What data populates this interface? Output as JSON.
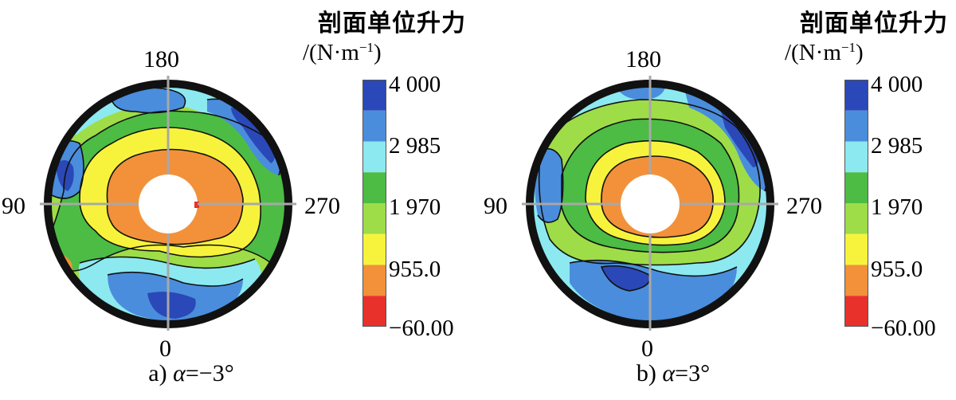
{
  "figures": [
    {
      "id": "a",
      "caption_prefix": "a)",
      "caption_alpha": "α",
      "caption_value": "=−3°",
      "legend_title": "剖面单位升力",
      "legend_unit_main": "/(N·m",
      "legend_unit_exp": "−1",
      "legend_unit_close": ")",
      "colorbar_ticks": [
        "4 000",
        "2 985",
        "1 970",
        "955.0",
        "−60.00"
      ],
      "angle_labels": {
        "top": "180",
        "left": "90",
        "right": "270",
        "bottom": "0"
      }
    },
    {
      "id": "b",
      "caption_prefix": "b)",
      "caption_alpha": "α",
      "caption_value": "=3°",
      "legend_title": "剖面单位升力",
      "legend_unit_main": "/(N·m",
      "legend_unit_exp": "−1",
      "legend_unit_close": ")",
      "colorbar_ticks": [
        "4 000",
        "2 985",
        "1 970",
        "955.0",
        "−60.00"
      ],
      "angle_labels": {
        "top": "180",
        "left": "90",
        "right": "270",
        "bottom": "0"
      }
    }
  ],
  "colors": {
    "level_colors": [
      "#e8312a",
      "#f2913a",
      "#f7f33c",
      "#9edd47",
      "#4cbc44",
      "#8ce9f0",
      "#4a8ddc",
      "#2b48b8"
    ],
    "contour_line": "#111111",
    "rim": "#111111",
    "crosshair": "#a8a8a8"
  }
}
